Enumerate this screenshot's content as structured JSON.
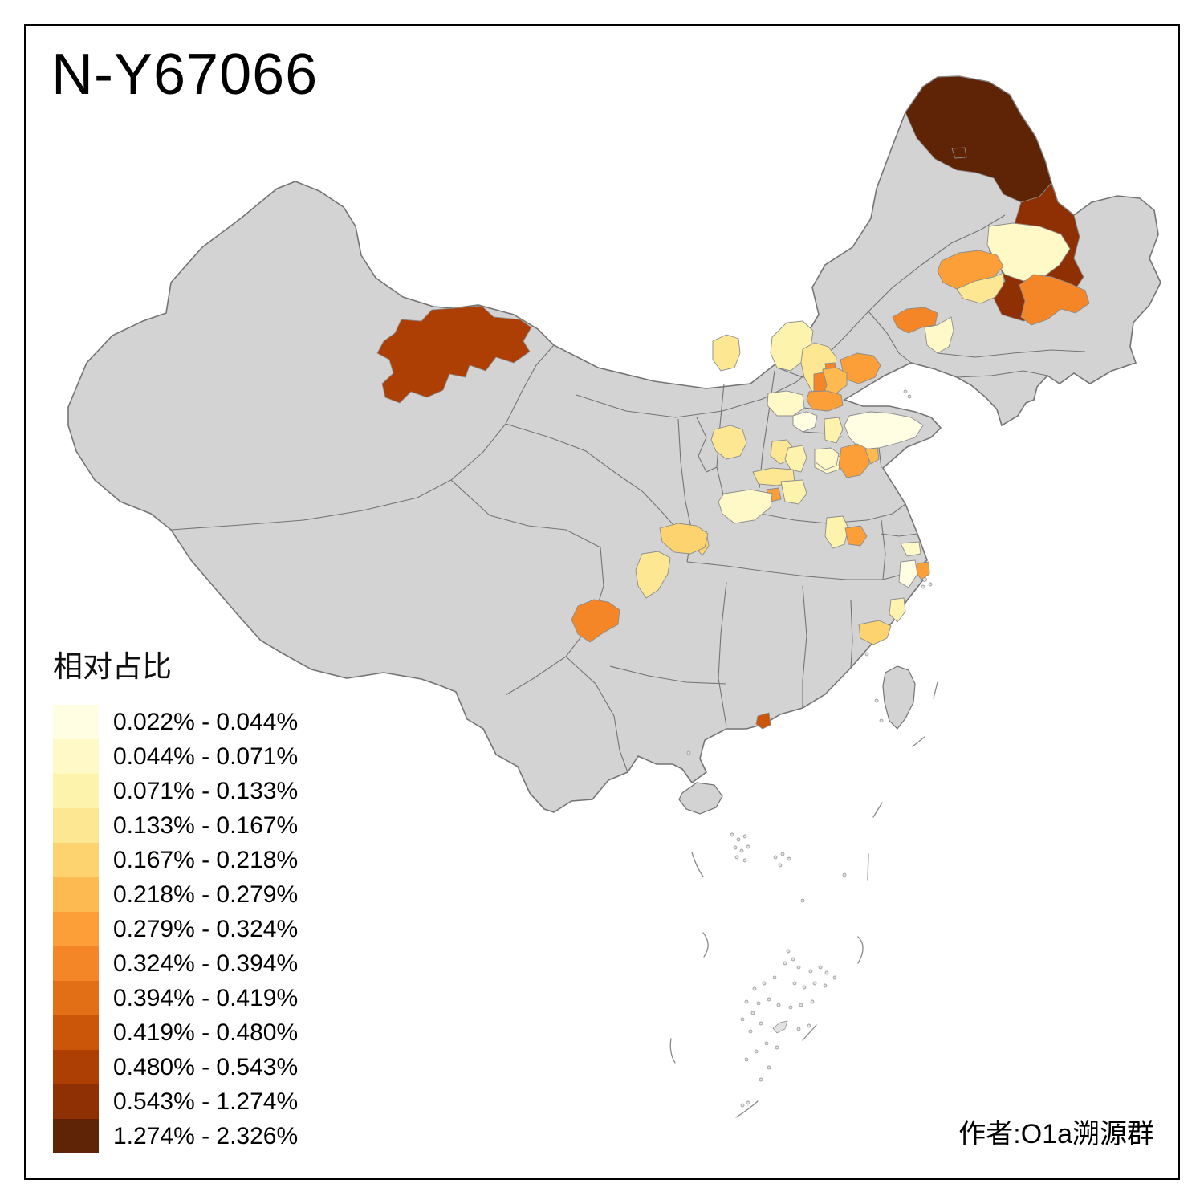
{
  "title": "N-Y67066",
  "attribution": "作者:O1a溯源群",
  "frame": {
    "border_color": "#000000"
  },
  "legend": {
    "title": "相对占比",
    "items": [
      {
        "label": "0.022% - 0.044%",
        "color": "#FFFEE3"
      },
      {
        "label": "0.044% - 0.071%",
        "color": "#FFF9C7"
      },
      {
        "label": "0.071% - 0.133%",
        "color": "#FEF3AC"
      },
      {
        "label": "0.133% - 0.167%",
        "color": "#FEE792"
      },
      {
        "label": "0.167% - 0.218%",
        "color": "#FDD36F"
      },
      {
        "label": "0.218% - 0.279%",
        "color": "#FDBA51"
      },
      {
        "label": "0.279% - 0.324%",
        "color": "#FD9F38"
      },
      {
        "label": "0.324% - 0.394%",
        "color": "#F48627"
      },
      {
        "label": "0.394% - 0.419%",
        "color": "#E26E16"
      },
      {
        "label": "0.419% - 0.480%",
        "color": "#CB5508"
      },
      {
        "label": "0.480% - 0.543%",
        "color": "#AD3E04"
      },
      {
        "label": "0.543% - 1.274%",
        "color": "#8F2F04"
      },
      {
        "label": "1.274% - 2.326%",
        "color": "#5F2405"
      }
    ]
  },
  "map": {
    "land_color": "#D3D3D3",
    "boundary_color": "#747474",
    "background_color": "#FFFFFF"
  }
}
